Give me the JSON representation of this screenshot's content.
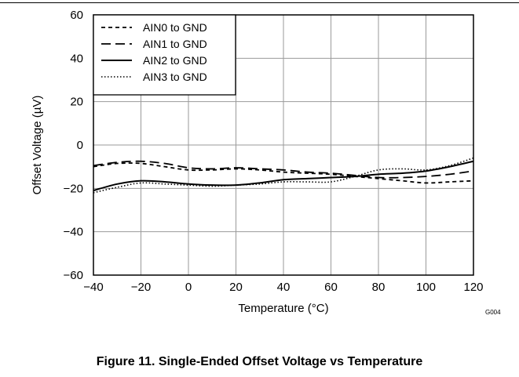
{
  "caption": "Figure 11. Single-Ended Offset Voltage vs Temperature",
  "figure_code": "G004",
  "chart_data": {
    "type": "line",
    "title": "",
    "xlabel": "Temperature (°C)",
    "ylabel": "Offset Voltage (µV)",
    "xlim": [
      -40,
      120
    ],
    "ylim": [
      -60,
      60
    ],
    "xticks": [
      -40,
      -20,
      0,
      20,
      40,
      60,
      80,
      100,
      120
    ],
    "yticks": [
      -60,
      -40,
      -20,
      0,
      20,
      40,
      60
    ],
    "xtick_labels": [
      "−40",
      "−20",
      "0",
      "20",
      "40",
      "60",
      "80",
      "100",
      "120"
    ],
    "ytick_labels": [
      "−60",
      "−40",
      "−20",
      "0",
      "20",
      "40",
      "60"
    ],
    "grid": true,
    "legend_position": "top-left",
    "series": [
      {
        "name": "AIN0 to GND",
        "style": "short-dash",
        "x": [
          -40,
          -30,
          -20,
          -10,
          0,
          10,
          20,
          30,
          40,
          50,
          60,
          70,
          80,
          90,
          100,
          110,
          120
        ],
        "y": [
          -10,
          -8.5,
          -8.5,
          -10,
          -11.5,
          -11.5,
          -11,
          -11.5,
          -12.5,
          -13,
          -13.5,
          -14.5,
          -15.5,
          -16.5,
          -17.5,
          -17,
          -16.5
        ]
      },
      {
        "name": "AIN1 to GND",
        "style": "long-dash",
        "x": [
          -40,
          -30,
          -20,
          -10,
          0,
          10,
          20,
          30,
          40,
          50,
          60,
          70,
          80,
          90,
          100,
          110,
          120
        ],
        "y": [
          -9.5,
          -8,
          -7.5,
          -8.5,
          -10.5,
          -11,
          -10.5,
          -11,
          -11.5,
          -12.5,
          -13,
          -14,
          -15,
          -15,
          -14.5,
          -13.5,
          -12
        ]
      },
      {
        "name": "AIN2 to GND",
        "style": "solid",
        "x": [
          -40,
          -30,
          -20,
          -10,
          0,
          10,
          20,
          30,
          40,
          50,
          60,
          70,
          80,
          90,
          100,
          110,
          120
        ],
        "y": [
          -21,
          -18,
          -16.5,
          -17,
          -18,
          -18.5,
          -18.5,
          -17.5,
          -16,
          -15.5,
          -15,
          -14.5,
          -13.5,
          -13,
          -12,
          -10,
          -7.5
        ]
      },
      {
        "name": "AIN3 to GND",
        "style": "dotted",
        "x": [
          -40,
          -30,
          -20,
          -10,
          0,
          10,
          20,
          30,
          40,
          50,
          60,
          70,
          80,
          90,
          100,
          110,
          120
        ],
        "y": [
          -22,
          -19.5,
          -17.5,
          -18,
          -18.5,
          -19,
          -18.5,
          -18,
          -17,
          -17,
          -17,
          -14.5,
          -11.5,
          -11,
          -11.5,
          -9.5,
          -6
        ]
      }
    ]
  }
}
